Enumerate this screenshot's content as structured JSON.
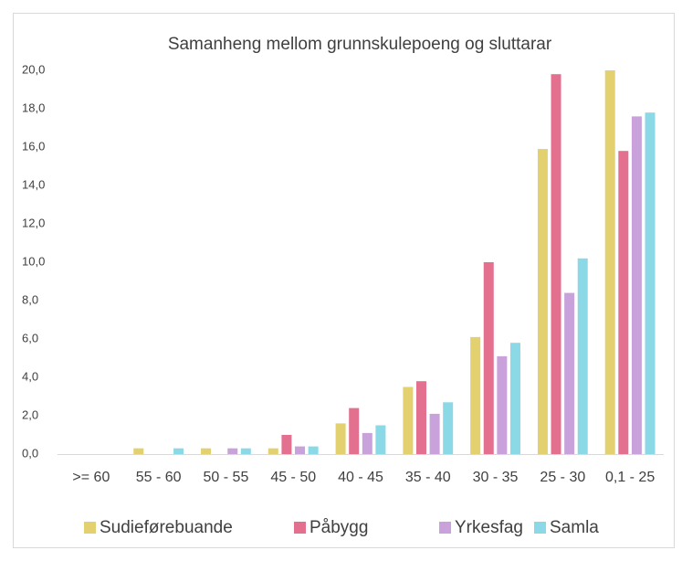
{
  "chart_data": {
    "type": "bar",
    "title": "Samanheng mellom grunnskulepoeng og sluttarar",
    "categories": [
      ">= 60",
      "55 - 60",
      "50 - 55",
      "45 - 50",
      "40 - 45",
      "35 - 40",
      "30 - 35",
      "25 - 30",
      "0,1 - 25"
    ],
    "series": [
      {
        "name": "Sudieførebuande",
        "color": "#e3d06e",
        "values": [
          0,
          0.3,
          0.3,
          0.3,
          1.6,
          3.5,
          6.1,
          15.9,
          20.0
        ]
      },
      {
        "name": "Påbygg",
        "color": "#e3708f",
        "values": [
          0,
          0,
          0,
          1.0,
          2.4,
          3.8,
          10.0,
          19.8,
          15.8
        ]
      },
      {
        "name": "Yrkesfag",
        "color": "#c9a1db",
        "values": [
          0,
          0,
          0.3,
          0.4,
          1.1,
          2.1,
          5.1,
          8.4,
          17.6
        ]
      },
      {
        "name": "Samla",
        "color": "#8bd9e7",
        "values": [
          0,
          0.3,
          0.3,
          0.4,
          1.5,
          2.7,
          5.8,
          10.2,
          17.8
        ]
      }
    ],
    "ylim": [
      0,
      20
    ],
    "yticks": [
      {
        "value": 0,
        "label": "0,0"
      },
      {
        "value": 2,
        "label": "2,0"
      },
      {
        "value": 4,
        "label": "4,0"
      },
      {
        "value": 6,
        "label": "6,0"
      },
      {
        "value": 8,
        "label": "8,0"
      },
      {
        "value": 10,
        "label": "10,0"
      },
      {
        "value": 12,
        "label": "12,0"
      },
      {
        "value": 14,
        "label": "14,0"
      },
      {
        "value": 16,
        "label": "16,0"
      },
      {
        "value": 18,
        "label": "18,0"
      },
      {
        "value": 20,
        "label": "20,0"
      }
    ],
    "grid": false,
    "legend": "bottom"
  }
}
